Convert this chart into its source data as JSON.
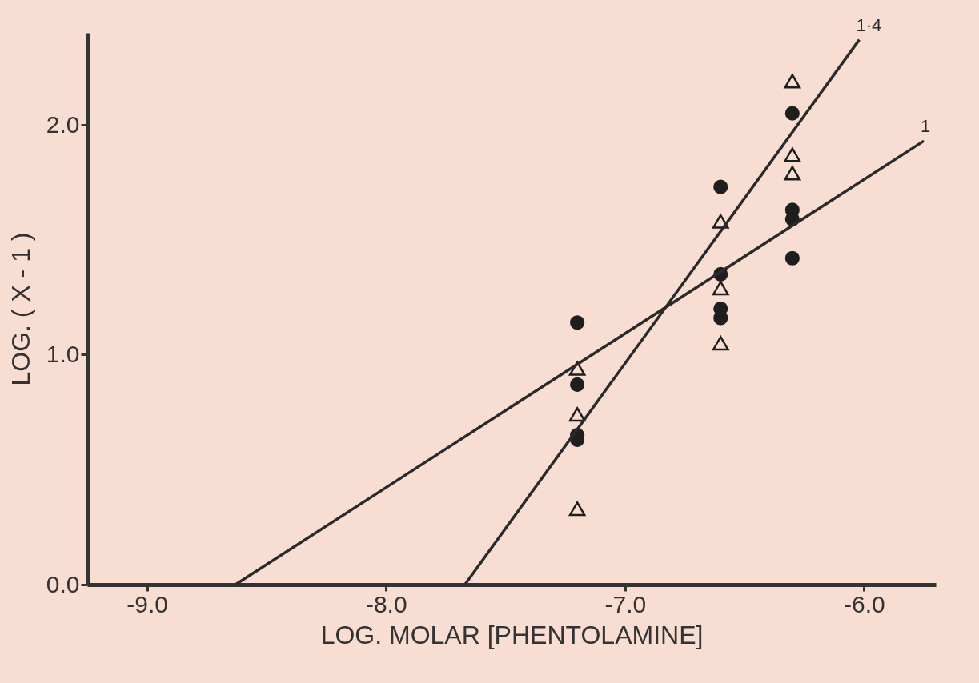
{
  "chart_data": {
    "type": "scatter",
    "xlabel": "LOG.  MOLAR [PHENTOLAMINE]",
    "ylabel": "LOG. ( X - 1 )",
    "xlim": [
      -9.25,
      -5.7
    ],
    "ylim": [
      0,
      2.4
    ],
    "xticks": [
      {
        "value": -9,
        "label": "-9.0"
      },
      {
        "value": -8,
        "label": "-8.0"
      },
      {
        "value": -7,
        "label": "-7.0"
      },
      {
        "value": -6,
        "label": "-6.0"
      }
    ],
    "yticks": [
      {
        "value": 0,
        "label": "0.0"
      },
      {
        "value": 1,
        "label": "1.0"
      },
      {
        "value": 2,
        "label": "2.0"
      }
    ],
    "grid": false,
    "series": [
      {
        "marker": "circle",
        "color": "#1e1e1e",
        "x": [
          -7.2,
          -7.2,
          -7.2,
          -7.2,
          -6.6,
          -6.6,
          -6.6,
          -6.6,
          -6.3,
          -6.3,
          -6.3,
          -6.3
        ],
        "values": [
          1.14,
          0.87,
          0.65,
          0.63,
          1.73,
          1.35,
          1.2,
          1.16,
          2.05,
          1.63,
          1.59,
          1.42
        ]
      },
      {
        "marker": "triangle",
        "color": "#1e1e1e",
        "x": [
          -7.2,
          -7.2,
          -7.2,
          -6.6,
          -6.6,
          -6.6,
          -6.3,
          -6.3,
          -6.3
        ],
        "values": [
          0.94,
          0.74,
          0.33,
          1.58,
          1.29,
          1.05,
          2.19,
          1.87,
          1.79
        ]
      },
      {
        "type": "line",
        "name": "1",
        "marker": "none",
        "color": "#2a2a2a",
        "x": [
          -8.63,
          -5.75
        ],
        "values": [
          0,
          1.93
        ]
      },
      {
        "type": "line",
        "name": "1·4",
        "marker": "none",
        "color": "#2a2a2a",
        "x": [
          -7.67,
          -6.02
        ],
        "values": [
          0,
          2.37
        ]
      }
    ]
  }
}
